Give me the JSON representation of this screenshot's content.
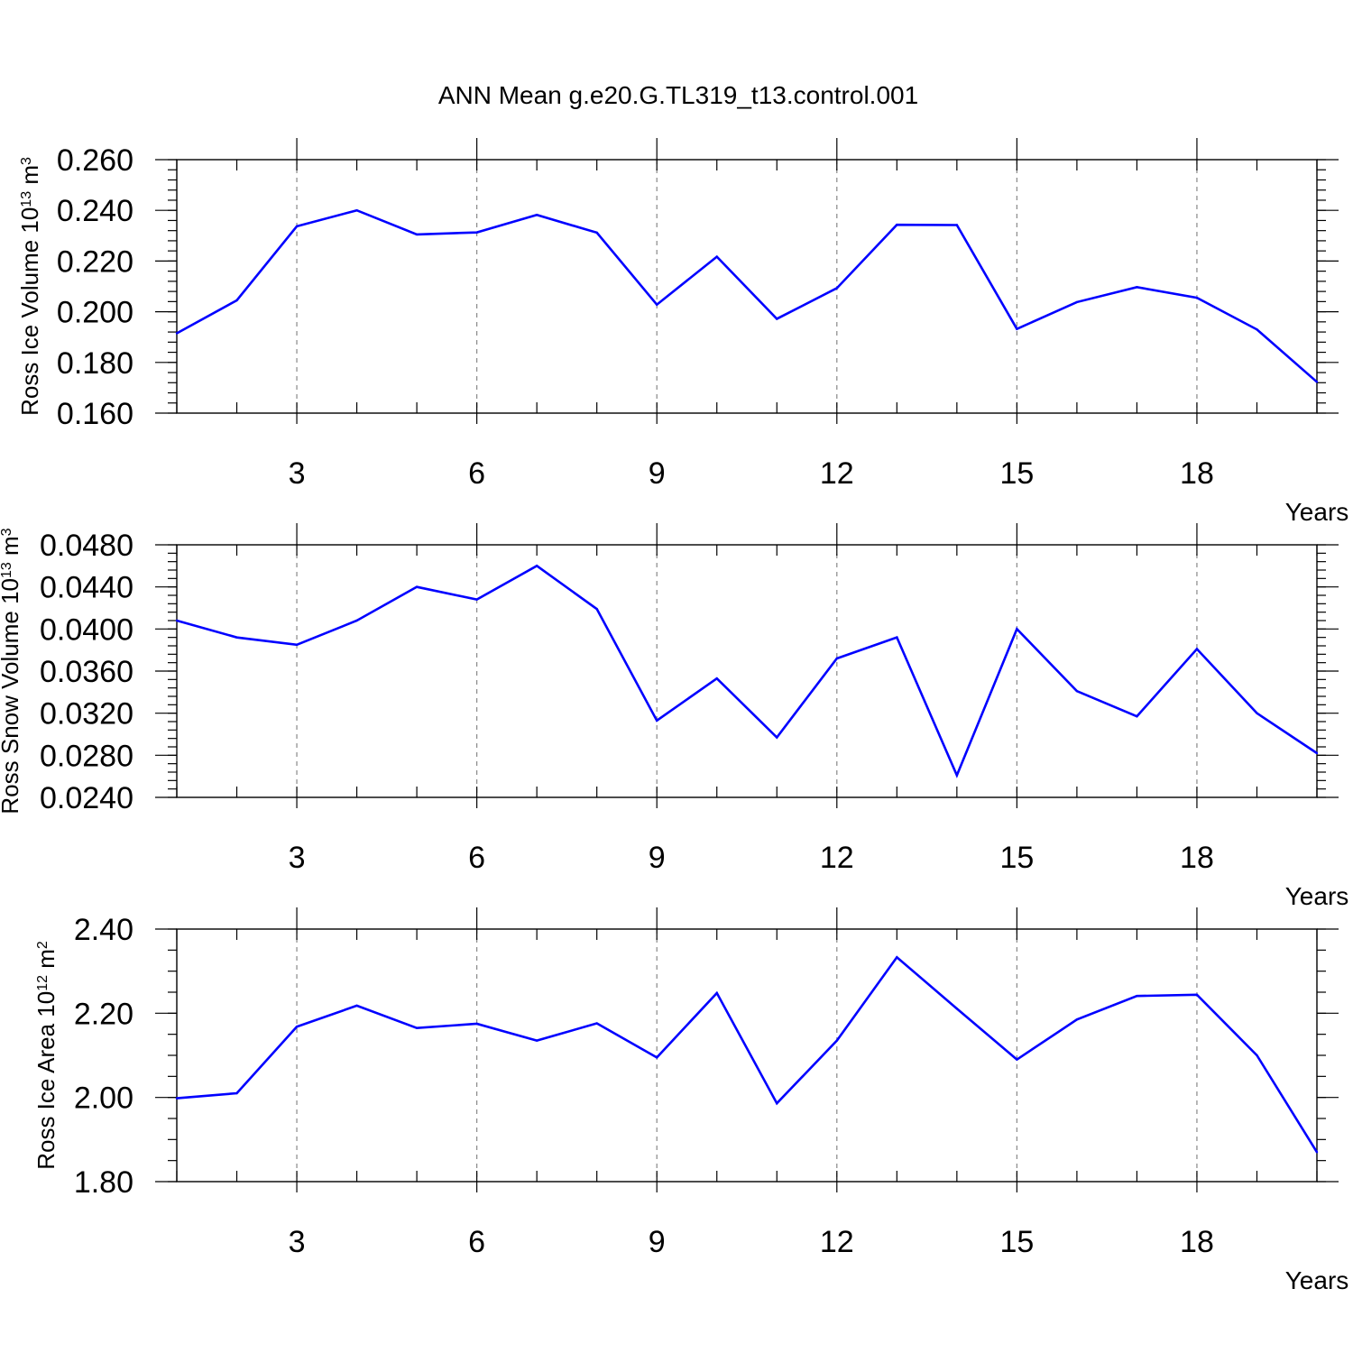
{
  "title": "ANN Mean g.e20.G.TL319_t13.control.001",
  "chart_data": [
    {
      "type": "line",
      "ylabel": "Ross Ice Volume 10",
      "ylabel_exp": "13",
      "ylabel_unit": " m",
      "ylabel_unit_exp": "3",
      "xlabel": "Years",
      "xlim": [
        1,
        20
      ],
      "ylim": [
        0.16,
        0.26
      ],
      "x_ticks": [
        3,
        6,
        9,
        12,
        15,
        18
      ],
      "x_tick_labels": [
        "3",
        "6",
        "9",
        "12",
        "15",
        "18"
      ],
      "y_ticks": [
        0.16,
        0.18,
        0.2,
        0.22,
        0.24,
        0.26
      ],
      "y_tick_labels": [
        "0.160",
        "0.180",
        "0.200",
        "0.220",
        "0.240",
        "0.260"
      ],
      "y_minor_step": 0.004,
      "grid": "vertical dashed at major x ticks",
      "line_color": "#0000ff",
      "x": [
        1,
        2,
        3,
        4,
        5,
        6,
        7,
        8,
        9,
        10,
        11,
        12,
        13,
        14,
        15,
        16,
        17,
        18,
        19,
        20
      ],
      "y": [
        0.1915,
        0.2045,
        0.2337,
        0.24,
        0.2305,
        0.2313,
        0.2382,
        0.2312,
        0.2028,
        0.2217,
        0.1972,
        0.2093,
        0.2343,
        0.2342,
        0.1932,
        0.2038,
        0.2097,
        0.2055,
        0.193,
        0.1723
      ]
    },
    {
      "type": "line",
      "ylabel": "Ross Snow Volume 10",
      "ylabel_exp": "13",
      "ylabel_unit": " m",
      "ylabel_unit_exp": "3",
      "xlabel": "Years",
      "xlim": [
        1,
        20
      ],
      "ylim": [
        0.024,
        0.048
      ],
      "x_ticks": [
        3,
        6,
        9,
        12,
        15,
        18
      ],
      "x_tick_labels": [
        "3",
        "6",
        "9",
        "12",
        "15",
        "18"
      ],
      "y_ticks": [
        0.024,
        0.028,
        0.032,
        0.036,
        0.04,
        0.044,
        0.048
      ],
      "y_tick_labels": [
        "0.0240",
        "0.0280",
        "0.0320",
        "0.0360",
        "0.0400",
        "0.0440",
        "0.0480"
      ],
      "y_minor_step": 0.0008,
      "grid": "vertical dashed at major x ticks",
      "line_color": "#0000ff",
      "x": [
        1,
        2,
        3,
        4,
        5,
        6,
        7,
        8,
        9,
        10,
        11,
        12,
        13,
        14,
        15,
        16,
        17,
        18,
        19,
        20
      ],
      "y": [
        0.0408,
        0.0392,
        0.0385,
        0.0408,
        0.044,
        0.0428,
        0.046,
        0.0419,
        0.0313,
        0.0353,
        0.0297,
        0.0372,
        0.0392,
        0.0261,
        0.04,
        0.0341,
        0.0317,
        0.0381,
        0.032,
        0.0282
      ]
    },
    {
      "type": "line",
      "ylabel": "Ross Ice Area 10",
      "ylabel_exp": "12",
      "ylabel_unit": " m",
      "ylabel_unit_exp": "2",
      "xlabel": "Years",
      "xlim": [
        1,
        20
      ],
      "ylim": [
        1.8,
        2.4
      ],
      "x_ticks": [
        3,
        6,
        9,
        12,
        15,
        18
      ],
      "x_tick_labels": [
        "3",
        "6",
        "9",
        "12",
        "15",
        "18"
      ],
      "y_ticks": [
        1.8,
        2.0,
        2.2,
        2.4
      ],
      "y_tick_labels": [
        "1.80",
        "2.00",
        "2.20",
        "2.40"
      ],
      "y_minor_step": 0.05,
      "grid": "vertical dashed at major x ticks",
      "line_color": "#0000ff",
      "x": [
        1,
        2,
        3,
        4,
        5,
        6,
        7,
        8,
        9,
        10,
        11,
        12,
        13,
        14,
        15,
        16,
        17,
        18,
        19,
        20
      ],
      "y": [
        1.998,
        2.01,
        2.168,
        2.218,
        2.165,
        2.175,
        2.135,
        2.176,
        2.095,
        2.248,
        1.986,
        2.135,
        2.333,
        2.211,
        2.09,
        2.185,
        2.241,
        2.244,
        2.1,
        1.87
      ]
    }
  ]
}
